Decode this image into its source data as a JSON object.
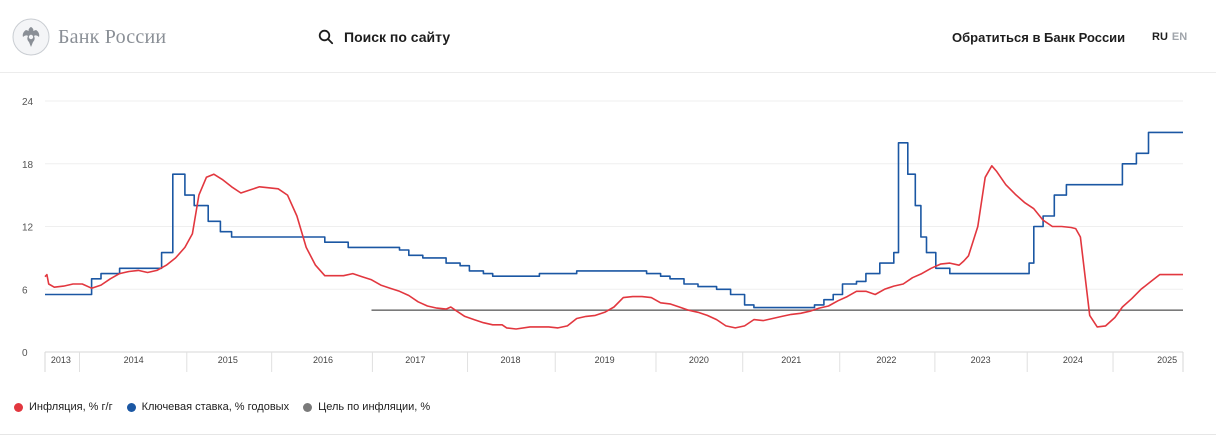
{
  "header": {
    "logo_text": "Банк России",
    "search_label": "Поиск по сайту",
    "contact_label": "Обратиться в Банк России",
    "lang_ru": "RU",
    "lang_en": "EN"
  },
  "legend": {
    "items": [
      {
        "label": "Инфляция, % г/г",
        "color": "#e2373f"
      },
      {
        "label": "Ключевая ставка, % годовых",
        "color": "#1b57a3"
      },
      {
        "label": "Цель по инфляции, %",
        "color": "#7a7a7a"
      }
    ]
  },
  "chart_data": {
    "type": "line",
    "ylim": [
      0,
      24
    ],
    "yticks": [
      0,
      6,
      12,
      18,
      24
    ],
    "xlim": [
      2013.0,
      2025.2
    ],
    "xticks": [
      {
        "label": "2013",
        "x": 2013.17
      },
      {
        "label": "2014",
        "x": 2013.95
      },
      {
        "label": "2015",
        "x": 2014.96
      },
      {
        "label": "2016",
        "x": 2015.98
      },
      {
        "label": "2017",
        "x": 2016.97
      },
      {
        "label": "2018",
        "x": 2017.99
      },
      {
        "label": "2019",
        "x": 2019.0
      },
      {
        "label": "2020",
        "x": 2020.01
      },
      {
        "label": "2021",
        "x": 2021.0
      },
      {
        "label": "2022",
        "x": 2022.02
      },
      {
        "label": "2023",
        "x": 2023.03
      },
      {
        "label": "2024",
        "x": 2024.02
      },
      {
        "label": "2025",
        "x": 2025.03
      }
    ],
    "year_boundaries": [
      2013.37,
      2014.52,
      2015.43,
      2016.51,
      2017.53,
      2018.47,
      2019.55,
      2020.48,
      2021.52,
      2022.54,
      2023.53,
      2024.45
    ],
    "series": [
      {
        "name": "Инфляция, % г/г",
        "color": "#e2373f",
        "kind": "line",
        "points": [
          [
            2013.0,
            7.2
          ],
          [
            2013.02,
            7.4
          ],
          [
            2013.04,
            6.5
          ],
          [
            2013.1,
            6.2
          ],
          [
            2013.2,
            6.3
          ],
          [
            2013.3,
            6.5
          ],
          [
            2013.4,
            6.5
          ],
          [
            2013.5,
            6.1
          ],
          [
            2013.6,
            6.4
          ],
          [
            2013.7,
            7.0
          ],
          [
            2013.8,
            7.5
          ],
          [
            2013.9,
            7.7
          ],
          [
            2014.0,
            7.8
          ],
          [
            2014.1,
            7.6
          ],
          [
            2014.2,
            7.8
          ],
          [
            2014.3,
            8.3
          ],
          [
            2014.4,
            9.0
          ],
          [
            2014.5,
            10.0
          ],
          [
            2014.58,
            11.3
          ],
          [
            2014.65,
            15.0
          ],
          [
            2014.73,
            16.7
          ],
          [
            2014.81,
            17.0
          ],
          [
            2014.9,
            16.5
          ],
          [
            2015.0,
            15.8
          ],
          [
            2015.1,
            15.2
          ],
          [
            2015.2,
            15.5
          ],
          [
            2015.3,
            15.8
          ],
          [
            2015.4,
            15.7
          ],
          [
            2015.5,
            15.6
          ],
          [
            2015.6,
            15.0
          ],
          [
            2015.7,
            13.0
          ],
          [
            2015.8,
            10.0
          ],
          [
            2015.9,
            8.3
          ],
          [
            2016.0,
            7.3
          ],
          [
            2016.1,
            7.3
          ],
          [
            2016.2,
            7.3
          ],
          [
            2016.3,
            7.5
          ],
          [
            2016.4,
            7.2
          ],
          [
            2016.5,
            6.9
          ],
          [
            2016.6,
            6.4
          ],
          [
            2016.7,
            6.1
          ],
          [
            2016.8,
            5.8
          ],
          [
            2016.9,
            5.4
          ],
          [
            2017.0,
            4.8
          ],
          [
            2017.1,
            4.4
          ],
          [
            2017.2,
            4.2
          ],
          [
            2017.3,
            4.1
          ],
          [
            2017.35,
            4.3
          ],
          [
            2017.4,
            4.0
          ],
          [
            2017.5,
            3.4
          ],
          [
            2017.6,
            3.1
          ],
          [
            2017.7,
            2.8
          ],
          [
            2017.8,
            2.6
          ],
          [
            2017.9,
            2.6
          ],
          [
            2017.95,
            2.3
          ],
          [
            2018.05,
            2.2
          ],
          [
            2018.2,
            2.4
          ],
          [
            2018.4,
            2.4
          ],
          [
            2018.5,
            2.3
          ],
          [
            2018.6,
            2.5
          ],
          [
            2018.7,
            3.2
          ],
          [
            2018.8,
            3.4
          ],
          [
            2018.9,
            3.5
          ],
          [
            2019.0,
            3.8
          ],
          [
            2019.1,
            4.3
          ],
          [
            2019.2,
            5.2
          ],
          [
            2019.3,
            5.3
          ],
          [
            2019.4,
            5.3
          ],
          [
            2019.5,
            5.2
          ],
          [
            2019.6,
            4.7
          ],
          [
            2019.7,
            4.6
          ],
          [
            2019.8,
            4.3
          ],
          [
            2019.9,
            4.0
          ],
          [
            2020.0,
            3.8
          ],
          [
            2020.1,
            3.5
          ],
          [
            2020.2,
            3.1
          ],
          [
            2020.3,
            2.5
          ],
          [
            2020.4,
            2.3
          ],
          [
            2020.5,
            2.5
          ],
          [
            2020.6,
            3.1
          ],
          [
            2020.7,
            3.0
          ],
          [
            2020.8,
            3.2
          ],
          [
            2020.9,
            3.4
          ],
          [
            2021.0,
            3.6
          ],
          [
            2021.1,
            3.7
          ],
          [
            2021.2,
            3.9
          ],
          [
            2021.3,
            4.2
          ],
          [
            2021.4,
            4.4
          ],
          [
            2021.5,
            4.9
          ],
          [
            2021.6,
            5.3
          ],
          [
            2021.7,
            5.8
          ],
          [
            2021.8,
            5.8
          ],
          [
            2021.9,
            5.5
          ],
          [
            2022.0,
            6.0
          ],
          [
            2022.1,
            6.3
          ],
          [
            2022.2,
            6.5
          ],
          [
            2022.3,
            7.1
          ],
          [
            2022.4,
            7.5
          ],
          [
            2022.5,
            8.0
          ],
          [
            2022.6,
            8.4
          ],
          [
            2022.7,
            8.5
          ],
          [
            2022.8,
            8.3
          ],
          [
            2022.85,
            8.7
          ],
          [
            2022.9,
            9.2
          ],
          [
            2023.0,
            12.0
          ],
          [
            2023.08,
            16.7
          ],
          [
            2023.15,
            17.8
          ],
          [
            2023.2,
            17.3
          ],
          [
            2023.3,
            16.0
          ],
          [
            2023.4,
            15.1
          ],
          [
            2023.5,
            14.3
          ],
          [
            2023.6,
            13.7
          ],
          [
            2023.7,
            12.6
          ],
          [
            2023.8,
            12.0
          ],
          [
            2023.9,
            12.0
          ],
          [
            2024.0,
            11.9
          ],
          [
            2024.05,
            11.8
          ],
          [
            2024.1,
            11.0
          ],
          [
            2024.2,
            3.5
          ],
          [
            2024.28,
            2.4
          ],
          [
            2024.37,
            2.5
          ],
          [
            2024.47,
            3.3
          ],
          [
            2024.55,
            4.3
          ],
          [
            2024.65,
            5.1
          ],
          [
            2024.75,
            6.0
          ],
          [
            2024.85,
            6.7
          ],
          [
            2024.95,
            7.4
          ],
          [
            2025.05,
            7.4
          ],
          [
            2025.15,
            7.4
          ],
          [
            2025.2,
            7.4
          ]
        ]
      },
      {
        "name": "Ключевая ставка, % годовых",
        "color": "#1b57a3",
        "kind": "step",
        "points": [
          [
            2013.0,
            5.5
          ],
          [
            2013.5,
            7.0
          ],
          [
            2013.6,
            7.5
          ],
          [
            2013.8,
            8.0
          ],
          [
            2014.1,
            8.0
          ],
          [
            2014.25,
            9.5
          ],
          [
            2014.37,
            17.0
          ],
          [
            2014.5,
            15.0
          ],
          [
            2014.6,
            14.0
          ],
          [
            2014.75,
            12.5
          ],
          [
            2014.88,
            11.5
          ],
          [
            2015.0,
            11.0
          ],
          [
            2015.7,
            11.0
          ],
          [
            2016.0,
            10.5
          ],
          [
            2016.25,
            10.0
          ],
          [
            2016.8,
            9.75
          ],
          [
            2016.9,
            9.25
          ],
          [
            2017.05,
            9.0
          ],
          [
            2017.3,
            8.5
          ],
          [
            2017.45,
            8.25
          ],
          [
            2017.55,
            7.75
          ],
          [
            2017.7,
            7.5
          ],
          [
            2017.8,
            7.25
          ],
          [
            2018.3,
            7.5
          ],
          [
            2018.7,
            7.75
          ],
          [
            2019.45,
            7.5
          ],
          [
            2019.6,
            7.25
          ],
          [
            2019.7,
            7.0
          ],
          [
            2019.85,
            6.5
          ],
          [
            2020.0,
            6.25
          ],
          [
            2020.2,
            6.0
          ],
          [
            2020.35,
            5.5
          ],
          [
            2020.5,
            4.5
          ],
          [
            2020.6,
            4.25
          ],
          [
            2021.25,
            4.5
          ],
          [
            2021.35,
            5.0
          ],
          [
            2021.45,
            5.5
          ],
          [
            2021.55,
            6.5
          ],
          [
            2021.7,
            6.75
          ],
          [
            2021.8,
            7.5
          ],
          [
            2021.95,
            8.5
          ],
          [
            2022.1,
            9.5
          ],
          [
            2022.15,
            20.0
          ],
          [
            2022.25,
            17.0
          ],
          [
            2022.33,
            14.0
          ],
          [
            2022.39,
            11.0
          ],
          [
            2022.45,
            9.5
          ],
          [
            2022.55,
            8.0
          ],
          [
            2022.7,
            7.5
          ],
          [
            2023.55,
            8.5
          ],
          [
            2023.6,
            12.0
          ],
          [
            2023.7,
            13.0
          ],
          [
            2023.82,
            15.0
          ],
          [
            2023.95,
            16.0
          ],
          [
            2024.55,
            18.0
          ],
          [
            2024.7,
            19.0
          ],
          [
            2024.83,
            21.0
          ],
          [
            2025.2,
            21.0
          ]
        ]
      },
      {
        "name": "Цель по инфляции, %",
        "color": "#7a7a7a",
        "kind": "line",
        "points": [
          [
            2016.5,
            4.0
          ],
          [
            2025.2,
            4.0
          ]
        ]
      }
    ]
  }
}
